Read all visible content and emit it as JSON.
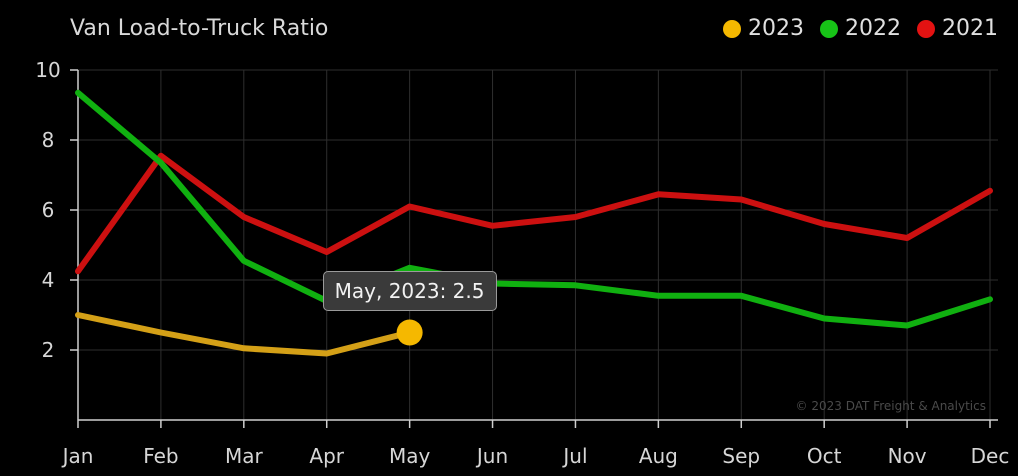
{
  "chart_data": {
    "type": "line",
    "title": "Van Load-to-Truck Ratio",
    "categories": [
      "Jan",
      "Feb",
      "Mar",
      "Apr",
      "May",
      "Jun",
      "Jul",
      "Aug",
      "Sep",
      "Oct",
      "Nov",
      "Dec"
    ],
    "ylim": [
      0,
      10
    ],
    "yticks": [
      2,
      4,
      6,
      8,
      10
    ],
    "grid": true,
    "legend_position": "top-right",
    "series": [
      {
        "name": "2023",
        "color": "#f5b800",
        "line_color": "#d4a017",
        "values": [
          3.0,
          2.5,
          2.05,
          1.9,
          2.5,
          null,
          null,
          null,
          null,
          null,
          null,
          null
        ]
      },
      {
        "name": "2022",
        "color": "#17c317",
        "line_color": "#10b010",
        "values": [
          9.35,
          7.35,
          4.55,
          3.4,
          4.35,
          3.9,
          3.85,
          3.55,
          3.55,
          2.9,
          2.7,
          3.45
        ]
      },
      {
        "name": "2021",
        "color": "#e31212",
        "line_color": "#cc1010",
        "values": [
          4.25,
          7.55,
          5.8,
          4.8,
          6.1,
          5.55,
          5.8,
          6.45,
          6.3,
          5.6,
          5.2,
          6.55
        ]
      }
    ],
    "tooltip": {
      "text": "May, 2023: 2.5",
      "series": "2023",
      "category": "May",
      "value": 2.5
    },
    "credit": "© 2023 DAT Freight & Analytics"
  }
}
